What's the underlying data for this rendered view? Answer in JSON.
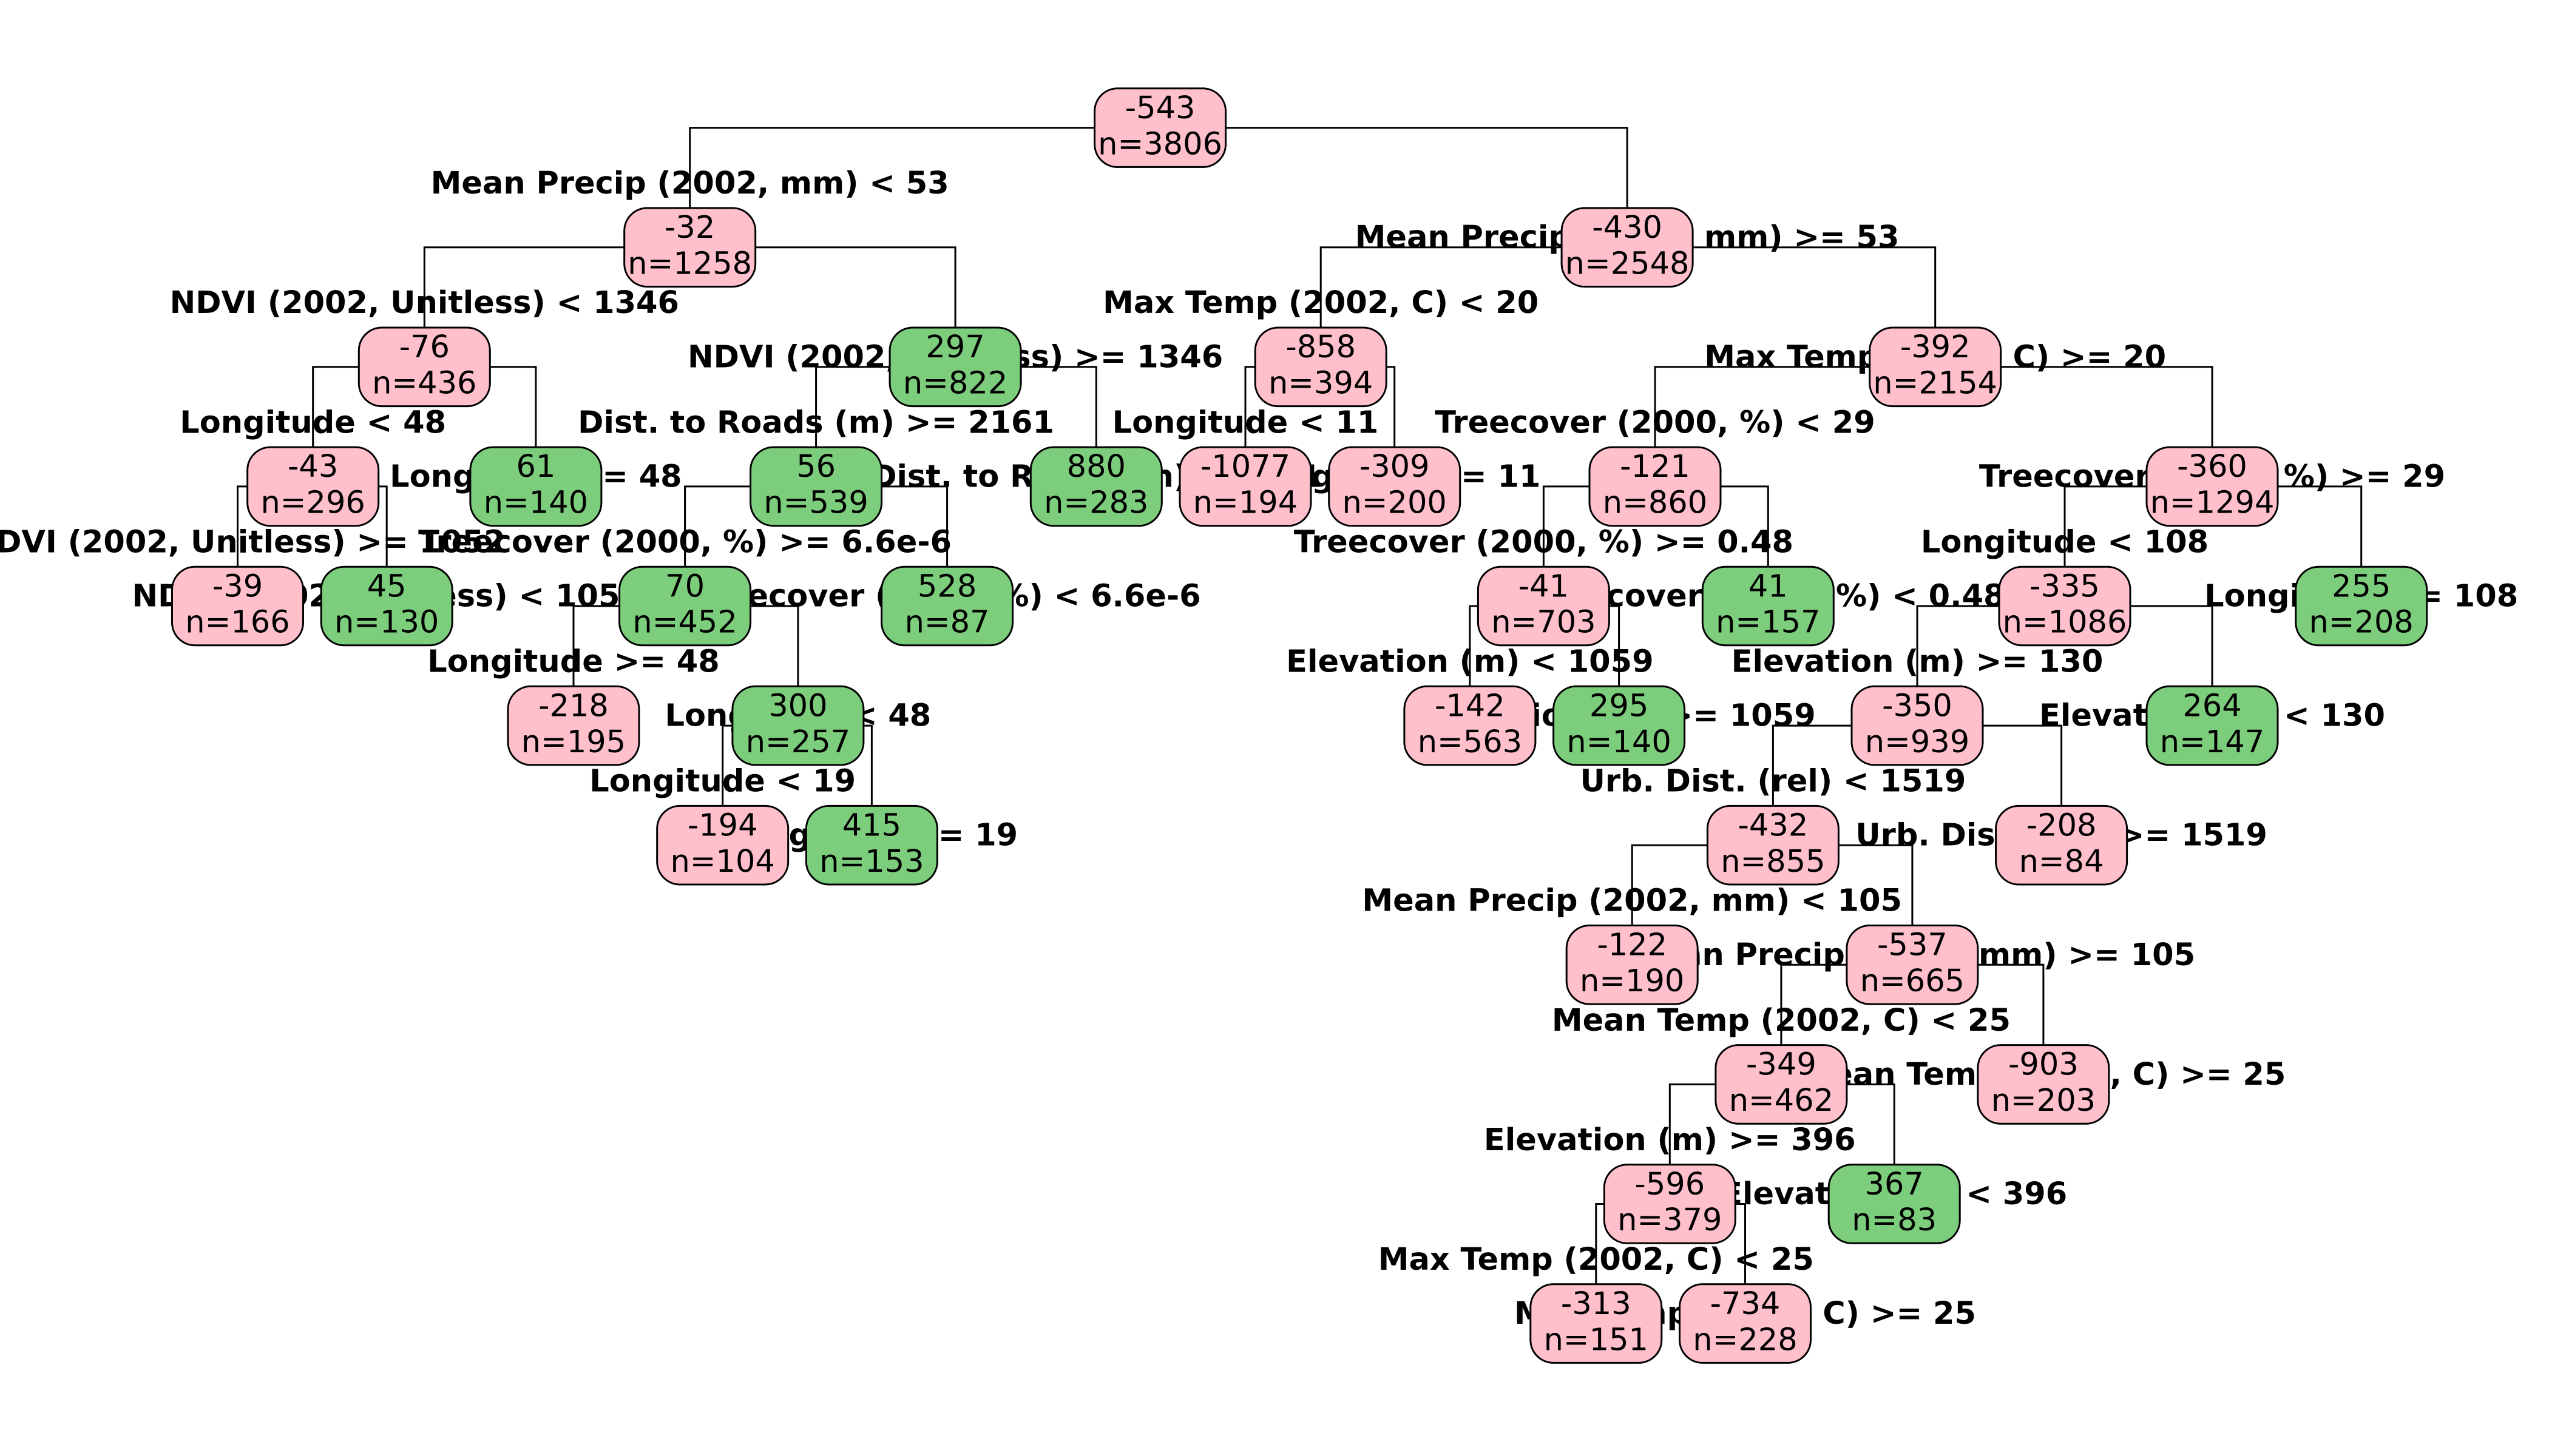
{
  "colors": {
    "negative": "#ffc0cb",
    "positive": "#7ccd7c",
    "line": "#000000"
  },
  "nodes": {
    "root": {
      "value": "-543",
      "count": "n=3806"
    },
    "n1": {
      "value": "-32",
      "count": "n=1258"
    },
    "n2": {
      "value": "-76",
      "count": "n=436"
    },
    "n3": {
      "value": "-43",
      "count": "n=296"
    },
    "n4": {
      "value": "-39",
      "count": "n=166"
    },
    "n5": {
      "value": "45",
      "count": "n=130"
    },
    "n6": {
      "value": "61",
      "count": "n=140"
    },
    "n7": {
      "value": "297",
      "count": "n=822"
    },
    "n8": {
      "value": "56",
      "count": "n=539"
    },
    "n9": {
      "value": "70",
      "count": "n=452"
    },
    "n10": {
      "value": "-218",
      "count": "n=195"
    },
    "n11": {
      "value": "300",
      "count": "n=257"
    },
    "n12": {
      "value": "-194",
      "count": "n=104"
    },
    "n13": {
      "value": "415",
      "count": "n=153"
    },
    "n14": {
      "value": "528",
      "count": "n=87"
    },
    "n15": {
      "value": "880",
      "count": "n=283"
    },
    "n16": {
      "value": "-430",
      "count": "n=2548"
    },
    "n17": {
      "value": "-858",
      "count": "n=394"
    },
    "n18": {
      "value": "-1077",
      "count": "n=194"
    },
    "n19": {
      "value": "-309",
      "count": "n=200"
    },
    "n20": {
      "value": "-392",
      "count": "n=2154"
    },
    "n21": {
      "value": "-121",
      "count": "n=860"
    },
    "n22": {
      "value": "-41",
      "count": "n=703"
    },
    "n23": {
      "value": "-142",
      "count": "n=563"
    },
    "n24": {
      "value": "295",
      "count": "n=140"
    },
    "n25": {
      "value": "41",
      "count": "n=157"
    },
    "n26": {
      "value": "-360",
      "count": "n=1294"
    },
    "n27": {
      "value": "-335",
      "count": "n=1086"
    },
    "n28": {
      "value": "-350",
      "count": "n=939"
    },
    "n29": {
      "value": "-432",
      "count": "n=855"
    },
    "n30": {
      "value": "-122",
      "count": "n=190"
    },
    "n31": {
      "value": "-537",
      "count": "n=665"
    },
    "n32": {
      "value": "-349",
      "count": "n=462"
    },
    "n33": {
      "value": "-596",
      "count": "n=379"
    },
    "n34": {
      "value": "-313",
      "count": "n=151"
    },
    "n35": {
      "value": "-734",
      "count": "n=228"
    },
    "n36": {
      "value": "367",
      "count": "n=83"
    },
    "n37": {
      "value": "-903",
      "count": "n=203"
    },
    "n38": {
      "value": "-208",
      "count": "n=84"
    },
    "n39": {
      "value": "264",
      "count": "n=147"
    },
    "n40": {
      "value": "255",
      "count": "n=208"
    }
  },
  "splits": {
    "s1": "Mean Precip (2002, mm) < 53",
    "s2": "Mean Precip (2002, mm) >= 53",
    "s3": "NDVI (2002, Unitless) < 1346",
    "s4": "NDVI (2002, Unitless) >= 1346",
    "s5": "Longitude < 48",
    "s6": "Longitude >= 48",
    "s7": "NDVI (2002, Unitless) >= 1052",
    "s8": "NDVI (2002, Unitless) < 1052",
    "s9": "Dist. to Roads (m) >= 2161",
    "s10": "Dist. to Roads (m) < 2161",
    "s11": "Treecover (2000, %) >= 6.6e-6",
    "s12": "Treecover (2000, %) < 6.6e-6",
    "s13": "Longitude >= 48",
    "s14": "Longitude < 48",
    "s15": "Longitude < 19",
    "s16": "Longitude >= 19",
    "s17": "Max Temp (2002, C) < 20",
    "s18": "Max Temp (2002, C) >= 20",
    "s19": "Longitude < 11",
    "s20": "Longitude >= 11",
    "s21": "Treecover (2000, %) < 29",
    "s22": "Treecover (2000, %) >= 29",
    "s23": "Treecover (2000, %) >= 0.48",
    "s24": "Treecover (2000, %) < 0.48",
    "s25": "Elevation (m) < 1059",
    "s26": "Elevation (m) >= 1059",
    "s27": "Longitude < 108",
    "s28": "Longitude >= 108",
    "s29": "Elevation (m) >= 130",
    "s30": "Elevation (m) < 130",
    "s31": "Urb. Dist. (rel) < 1519",
    "s32": "Urb. Dist. (rel) >= 1519",
    "s33": "Mean Precip (2002, mm) < 105",
    "s34": "Mean Precip (2002, mm) >= 105",
    "s35": "Mean Temp (2002, C) < 25",
    "s36": "Mean Temp (2002, C) >= 25",
    "s37": "Elevation (m) >= 396",
    "s38": "Elevation (m) < 396",
    "s39": "Max Temp (2002, C) < 25",
    "s40": "Max Temp (2002, C) >= 25"
  }
}
